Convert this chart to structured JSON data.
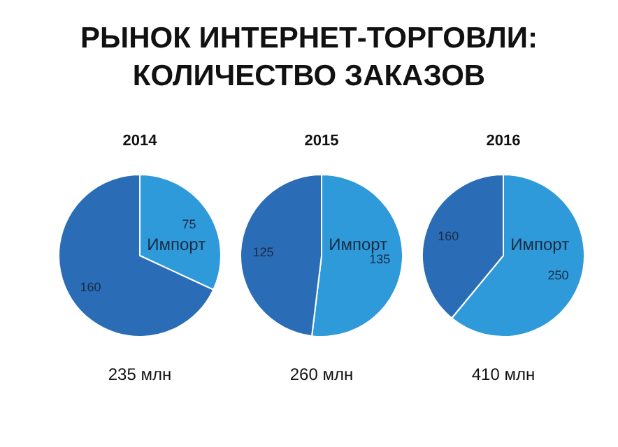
{
  "chart_data": [
    {
      "type": "other",
      "title": "РЫНОК ИНТЕРНЕТ-ТОРГОВЛИ:\nКОЛИЧЕСТВО ЗАКАЗОВ"
    },
    {
      "type": "pie",
      "title": "2014",
      "categories": [
        "Импорт",
        null
      ],
      "values": [
        75,
        160
      ],
      "colors": [
        "#2f9ad9",
        "#2a6db6"
      ],
      "data_labels": true,
      "annotations": [
        "235 млн"
      ]
    },
    {
      "type": "pie",
      "title": "2015",
      "categories": [
        "Импорт",
        null
      ],
      "values": [
        135,
        125
      ],
      "colors": [
        "#2f9ad9",
        "#2a6db6"
      ],
      "data_labels": true,
      "annotations": [
        "260 млн"
      ]
    },
    {
      "type": "pie",
      "title": "2016",
      "categories": [
        "Импорт",
        null
      ],
      "values": [
        250,
        160
      ],
      "colors": [
        "#2f9ad9",
        "#2a6db6"
      ],
      "data_labels": true,
      "annotations": [
        "410 млн"
      ]
    }
  ]
}
